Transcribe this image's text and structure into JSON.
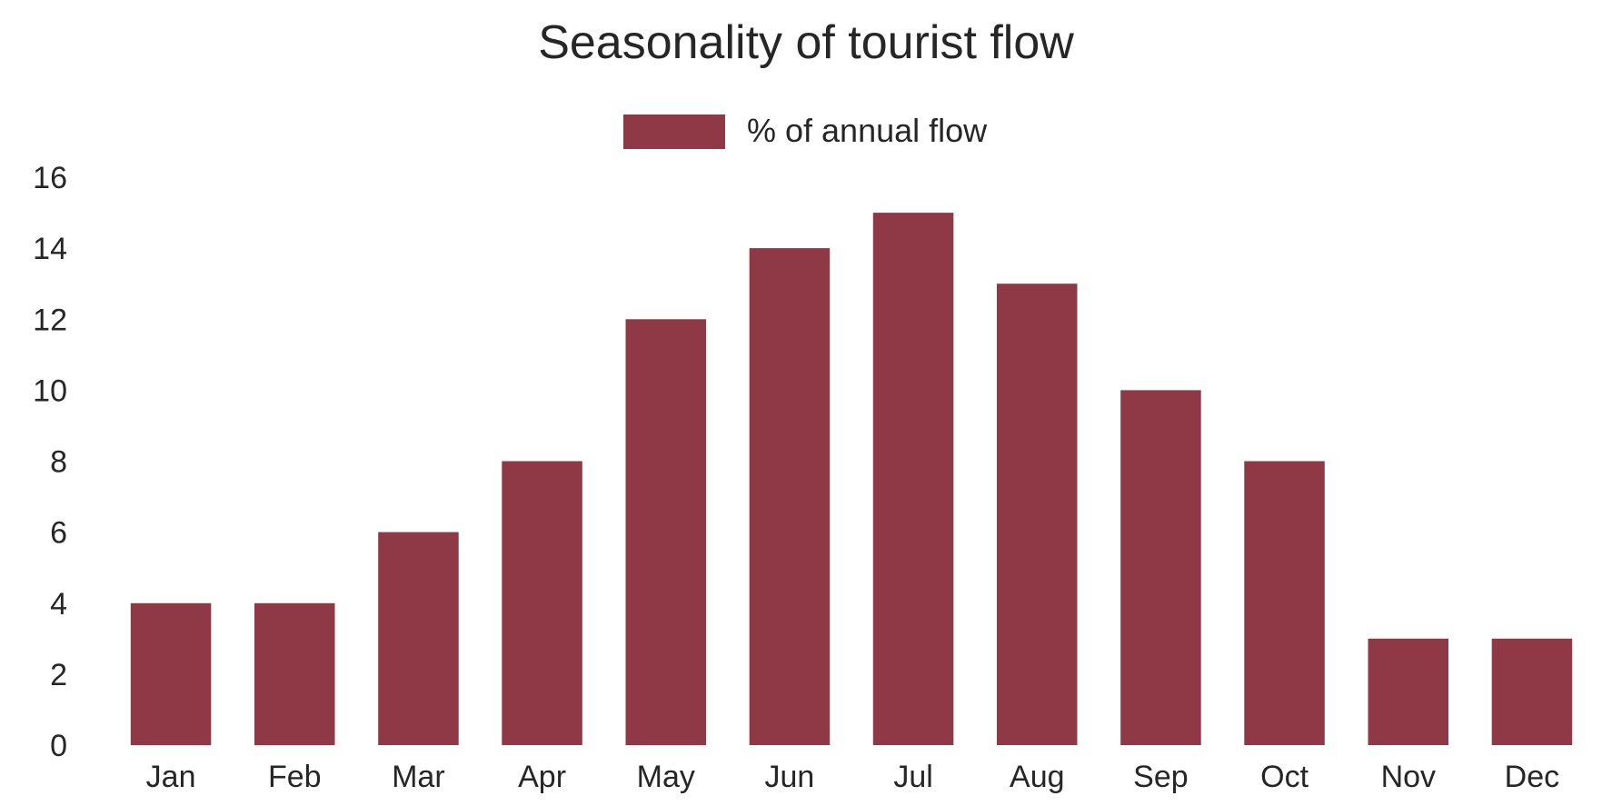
{
  "chart_data": {
    "type": "bar",
    "title": "Seasonality of tourist flow",
    "categories": [
      "Jan",
      "Feb",
      "Mar",
      "Apr",
      "May",
      "Jun",
      "Jul",
      "Aug",
      "Sep",
      "Oct",
      "Nov",
      "Dec"
    ],
    "series": [
      {
        "name": "% of annual flow",
        "values": [
          4,
          4,
          6,
          8,
          12,
          14,
          15,
          13,
          10,
          8,
          3,
          3
        ],
        "color": "#8f3946"
      }
    ],
    "ylim": [
      0,
      16
    ],
    "y_ticks": [
      0,
      2,
      4,
      6,
      8,
      10,
      12,
      14,
      16
    ],
    "xlabel": "",
    "ylabel": "",
    "grid": false,
    "legend_position": "top-center"
  }
}
